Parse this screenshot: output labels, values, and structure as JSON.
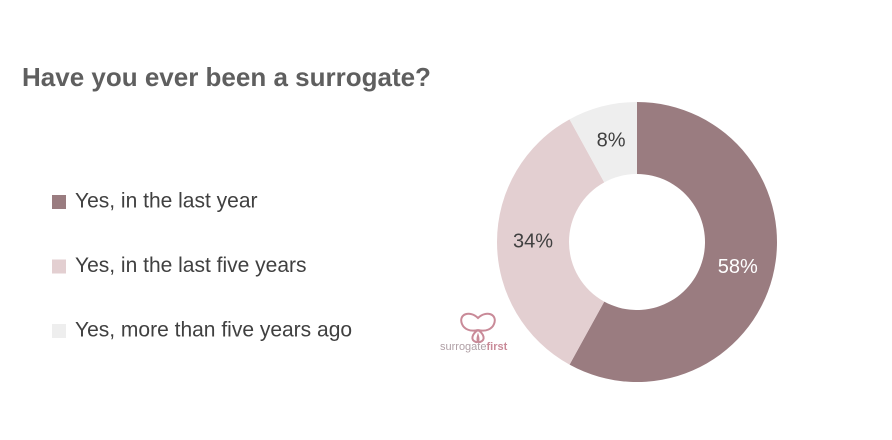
{
  "chart_data": {
    "type": "donut",
    "title": "Have you ever been a surrogate?",
    "categories": [
      "Yes, in the last year",
      "Yes, in the last five years",
      "Yes, more than five years ago"
    ],
    "values": [
      58,
      34,
      8
    ],
    "value_labels": [
      "58%",
      "34%",
      "8%"
    ],
    "colors": [
      "#9a7c80",
      "#e3cfd1",
      "#eeeeee"
    ],
    "legend": "left"
  },
  "logo": {
    "text_1": "surrogate",
    "text_2": "first"
  }
}
